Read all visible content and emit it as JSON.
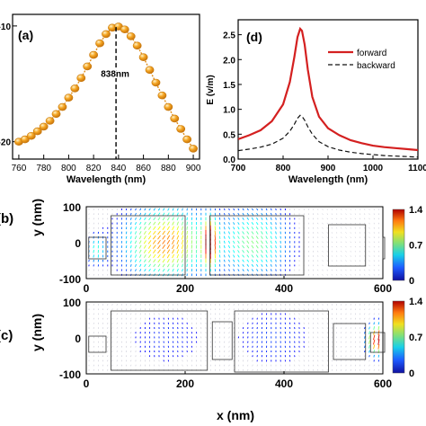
{
  "colors": {
    "dots": "#f5a623",
    "dots_edge": "#c77a10",
    "dots_line": "#e08e1a",
    "forward": "#d42020",
    "backward": "#111111"
  },
  "chart_data": [
    {
      "type": "scatter",
      "panel_label": "(a)",
      "xlabel": "Wavelength",
      "xlabel_unit": "(nm)",
      "ylabel": "",
      "xlim": [
        755,
        905
      ],
      "ylim": [
        -21.5,
        -9.0
      ],
      "xticks": [
        "760",
        "780",
        "800",
        "820",
        "840",
        "860",
        "880",
        "900"
      ],
      "xtick_values": [
        760,
        780,
        800,
        820,
        840,
        860,
        880,
        900
      ],
      "yticks": [
        "-10",
        "-20"
      ],
      "ytick_values": [
        -10,
        -20
      ],
      "annotation": "838nm",
      "annotation_x": 838,
      "x": [
        760,
        765,
        770,
        775,
        780,
        785,
        790,
        795,
        800,
        805,
        810,
        815,
        820,
        825,
        830,
        835,
        840,
        845,
        850,
        855,
        860,
        865,
        870,
        875,
        880,
        885,
        890,
        895,
        900
      ],
      "y": [
        -20.0,
        -19.8,
        -19.5,
        -19.1,
        -18.7,
        -18.2,
        -17.6,
        -17.0,
        -16.2,
        -15.4,
        -14.5,
        -13.5,
        -12.5,
        -11.5,
        -10.7,
        -10.15,
        -10.05,
        -10.3,
        -10.9,
        -11.7,
        -12.7,
        -13.8,
        -14.9,
        -16.0,
        -17.0,
        -18.0,
        -18.9,
        -19.8,
        -20.6
      ]
    },
    {
      "type": "line",
      "panel_label": "(d)",
      "xlabel": "Wavelength",
      "xlabel_unit": "(nm)",
      "ylabel": "E (v/m)",
      "xlim": [
        700,
        1100
      ],
      "ylim": [
        0,
        2.8
      ],
      "xticks": [
        "700",
        "800",
        "900",
        "1000",
        "1100"
      ],
      "xtick_values": [
        700,
        800,
        900,
        1000,
        1100
      ],
      "yticks": [
        "0.0",
        "0.5",
        "1.0",
        "1.5",
        "2.0",
        "2.5"
      ],
      "ytick_values": [
        0,
        0.5,
        1.0,
        1.5,
        2.0,
        2.5
      ],
      "legend_position": "top-right",
      "series": [
        {
          "name": "forward",
          "style": "solid",
          "x": [
            700,
            725,
            750,
            775,
            800,
            815,
            825,
            832,
            838,
            842,
            848,
            855,
            865,
            880,
            900,
            925,
            950,
            975,
            1000,
            1025,
            1050,
            1075,
            1100
          ],
          "y": [
            0.4,
            0.48,
            0.58,
            0.76,
            1.1,
            1.55,
            2.05,
            2.45,
            2.62,
            2.58,
            2.3,
            1.8,
            1.25,
            0.85,
            0.62,
            0.48,
            0.38,
            0.32,
            0.27,
            0.24,
            0.22,
            0.2,
            0.18
          ]
        },
        {
          "name": "backward",
          "style": "dashed",
          "x": [
            700,
            725,
            750,
            775,
            800,
            815,
            825,
            832,
            838,
            842,
            848,
            855,
            865,
            880,
            900,
            925,
            950,
            975,
            1000,
            1025,
            1050,
            1075,
            1100
          ],
          "y": [
            0.17,
            0.2,
            0.24,
            0.3,
            0.42,
            0.56,
            0.7,
            0.82,
            0.88,
            0.86,
            0.78,
            0.65,
            0.5,
            0.35,
            0.25,
            0.18,
            0.14,
            0.11,
            0.09,
            0.07,
            0.06,
            0.05,
            0.04
          ]
        }
      ]
    },
    {
      "type": "heatmap",
      "panel_label": "(b)",
      "xlabel": "",
      "ylabel": "y",
      "ylabel_unit": "(nm)",
      "xlim": [
        0,
        600
      ],
      "ylim": [
        -100,
        100
      ],
      "xticks": [
        "0",
        "200",
        "400",
        "600"
      ],
      "xtick_values": [
        0,
        200,
        400,
        600
      ],
      "yticks": [
        "100",
        "0",
        "-100"
      ],
      "ytick_values": [
        100,
        0,
        -100
      ],
      "colorbar_ticks": [
        "1.4",
        "0.7",
        "0"
      ],
      "colorbar_values": [
        1.4,
        0.7,
        0
      ],
      "rects": [
        [
          5,
          -45,
          40,
          15
        ],
        [
          50,
          -90,
          200,
          75
        ],
        [
          250,
          -90,
          440,
          75
        ],
        [
          490,
          -65,
          565,
          50
        ],
        [
          600,
          -45,
          640,
          15
        ]
      ],
      "field": "forward"
    },
    {
      "type": "heatmap",
      "panel_label": "(c)",
      "xlabel": "x",
      "xlabel_unit": "(nm)",
      "ylabel": "y",
      "ylabel_unit": "(nm)",
      "xlim": [
        0,
        600
      ],
      "ylim": [
        -100,
        100
      ],
      "xticks": [
        "0",
        "200",
        "400",
        "600"
      ],
      "xtick_values": [
        0,
        200,
        400,
        600
      ],
      "yticks": [
        "100",
        "0",
        "-100"
      ],
      "ytick_values": [
        100,
        0,
        -100
      ],
      "colorbar_ticks": [
        "1.4",
        "0.7",
        "0"
      ],
      "colorbar_values": [
        1.4,
        0.7,
        0
      ],
      "rects": [
        [
          5,
          -40,
          40,
          5
        ],
        [
          50,
          -90,
          245,
          75
        ],
        [
          255,
          -60,
          295,
          45
        ],
        [
          300,
          -95,
          490,
          75
        ],
        [
          500,
          -60,
          565,
          40
        ],
        [
          575,
          -40,
          605,
          15
        ]
      ],
      "field": "backward"
    }
  ]
}
